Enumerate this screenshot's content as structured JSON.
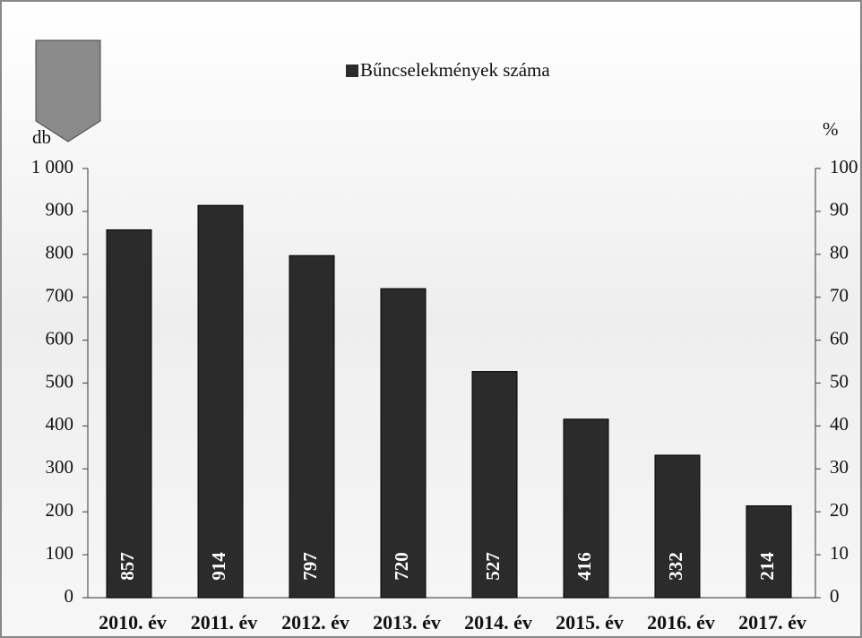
{
  "chart_data": {
    "type": "bar",
    "legend": "Bűncselekmények száma",
    "y_label": "db",
    "y2_label": "%",
    "categories": [
      "2010. év",
      "2011. év",
      "2012. év",
      "2013. év",
      "2014. év",
      "2015. év",
      "2016. év",
      "2017. év"
    ],
    "values": [
      857,
      914,
      797,
      720,
      527,
      416,
      332,
      214
    ],
    "color": "#2b2b2b",
    "ylim": [
      0,
      1000
    ],
    "yticks": [
      0,
      100,
      200,
      300,
      400,
      500,
      600,
      700,
      800,
      900,
      {
        "value": 1000,
        "label": "1 000"
      }
    ],
    "y2lim": [
      0,
      100
    ],
    "y2ticks": [
      0,
      10,
      20,
      30,
      40,
      50,
      60,
      70,
      80,
      90,
      100
    ]
  }
}
